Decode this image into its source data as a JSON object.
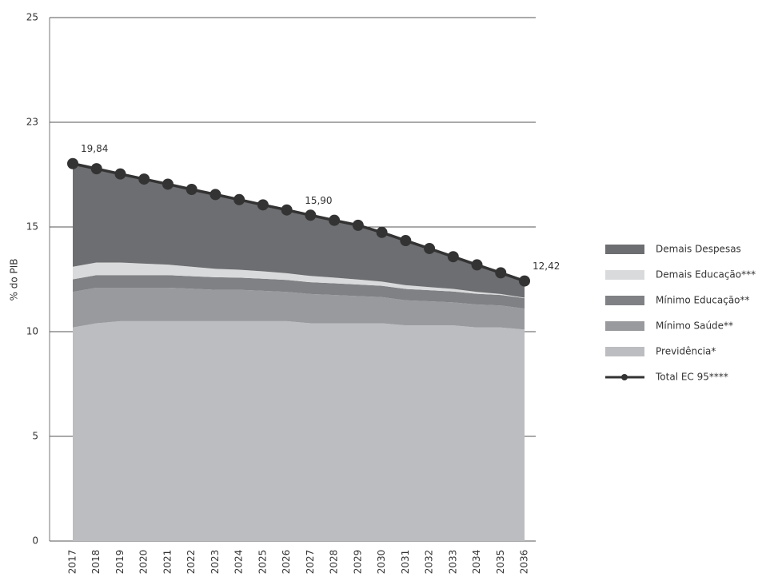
{
  "chart_data": {
    "type": "stacked_area_line",
    "y_label": "% do PIB",
    "categories": [
      "2017",
      "2018",
      "2019",
      "2020",
      "2021",
      "2022",
      "2023",
      "2024",
      "2025",
      "2026",
      "2027",
      "2028",
      "2029",
      "2030",
      "2031",
      "2032",
      "2033",
      "2034",
      "2035",
      "2036"
    ],
    "ylim": [
      0,
      25
    ],
    "yticks": [
      0,
      5,
      10,
      15,
      23,
      25
    ],
    "grid": true,
    "legend": "right",
    "series": [
      {
        "name": "Previdência*",
        "color": "#bcbdc0",
        "values": [
          10.2,
          10.4,
          10.5,
          10.5,
          10.5,
          10.5,
          10.5,
          10.5,
          10.5,
          10.5,
          10.4,
          10.4,
          10.4,
          10.4,
          10.3,
          10.3,
          10.3,
          10.2,
          10.2,
          10.1
        ]
      },
      {
        "name": "Mínimo Saúde**",
        "color": "#999a9d",
        "values": [
          1.7,
          1.7,
          1.6,
          1.6,
          1.6,
          1.55,
          1.5,
          1.5,
          1.45,
          1.4,
          1.4,
          1.35,
          1.3,
          1.25,
          1.2,
          1.15,
          1.1,
          1.1,
          1.05,
          1.0
        ]
      },
      {
        "name": "Mínimo Educação**",
        "color": "#808184",
        "values": [
          0.6,
          0.6,
          0.6,
          0.6,
          0.6,
          0.6,
          0.6,
          0.58,
          0.58,
          0.57,
          0.56,
          0.56,
          0.55,
          0.54,
          0.54,
          0.53,
          0.52,
          0.51,
          0.5,
          0.5
        ]
      },
      {
        "name": "Demais Educação***",
        "color": "#d9dadb",
        "values": [
          0.6,
          0.6,
          0.6,
          0.55,
          0.5,
          0.45,
          0.4,
          0.38,
          0.35,
          0.32,
          0.3,
          0.27,
          0.24,
          0.2,
          0.18,
          0.15,
          0.12,
          0.09,
          0.05,
          0.02
        ]
      },
      {
        "name": "Demais Despesas",
        "color": "#6d6e71",
        "values": [
          6.74,
          6.15,
          5.75,
          5.41,
          5.07,
          4.77,
          4.48,
          4.13,
          3.81,
          3.51,
          3.24,
          2.93,
          2.64,
          2.35,
          2.13,
          1.84,
          1.54,
          1.29,
          1.01,
          0.8
        ]
      }
    ],
    "line": {
      "name": "Total EC 95****",
      "color": "#333333",
      "values": [
        19.84,
        19.45,
        19.05,
        18.66,
        18.27,
        17.87,
        17.48,
        17.09,
        16.69,
        16.3,
        15.9,
        15.51,
        15.13,
        14.74,
        14.35,
        13.97,
        13.58,
        13.19,
        12.81,
        12.42
      ],
      "value_labels": [
        "19,84",
        null,
        null,
        null,
        null,
        null,
        null,
        null,
        null,
        null,
        "15,90",
        null,
        null,
        null,
        null,
        null,
        null,
        null,
        null,
        "12,42"
      ]
    }
  }
}
